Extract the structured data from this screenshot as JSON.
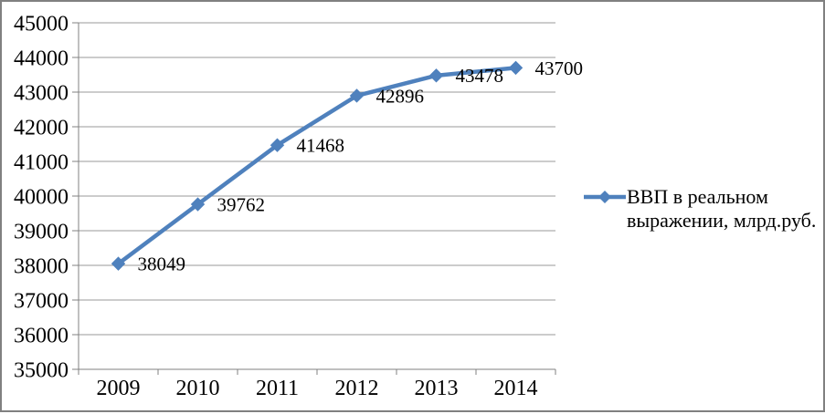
{
  "chart_data": {
    "type": "line",
    "title": "",
    "categories": [
      "2009",
      "2010",
      "2011",
      "2012",
      "2013",
      "2014"
    ],
    "series": [
      {
        "name": "ВВП в реальном выражении, млрд.руб.",
        "values": [
          38049,
          39762,
          41468,
          42896,
          43478,
          43700
        ],
        "marker": "diamond"
      }
    ],
    "xlabel": "",
    "ylabel": "",
    "ylim": [
      35000,
      45000
    ],
    "ytick_step": 1000,
    "grid": "horizontal",
    "data_labels": true,
    "legend_position": "right",
    "colors": {
      "series": "#4F81BD",
      "gridline": "#999999",
      "axis": "#808080",
      "text": "#000000",
      "frame_border": "#808080",
      "background": "#FFFFFF"
    }
  }
}
